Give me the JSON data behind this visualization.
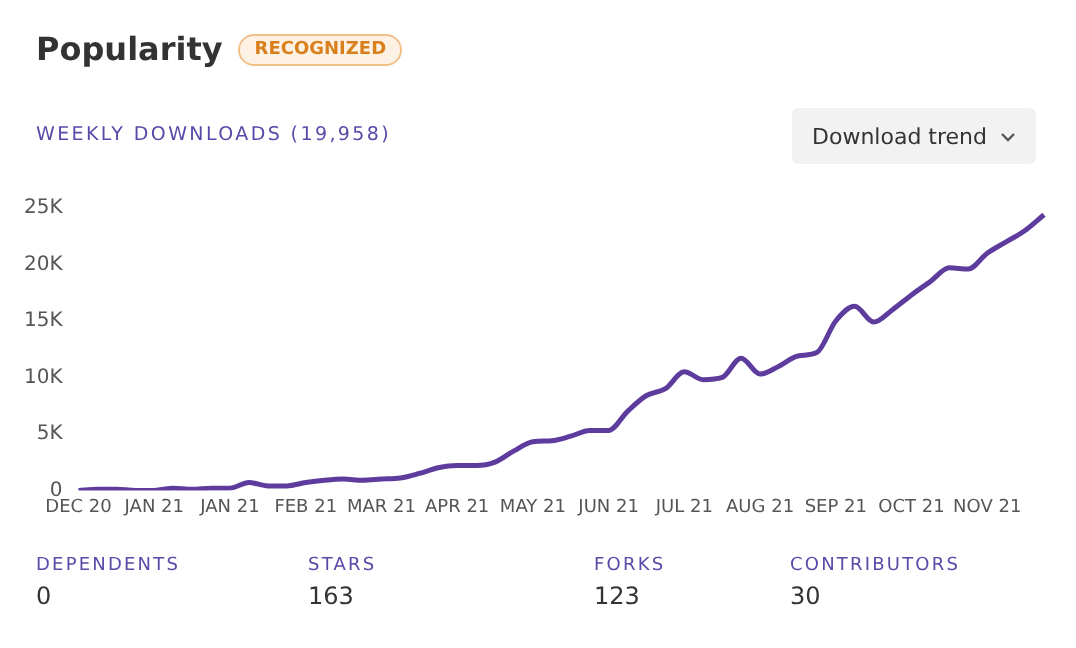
{
  "chart_data": {
    "type": "line",
    "title": "Popularity",
    "subtitle": "WEEKLY DOWNLOADS (19,958)",
    "annotations": [
      "RECOGNIZED",
      "Download trend",
      "DEPENDENTS",
      "0",
      "STARS",
      "163",
      "FORKS",
      "123",
      "CONTRIBUTORS",
      "30"
    ],
    "categories": [
      "DEC 20",
      null,
      null,
      null,
      "JAN 21",
      null,
      null,
      null,
      "JAN 21",
      null,
      null,
      null,
      "FEB 21",
      null,
      null,
      null,
      "MAR 21",
      null,
      null,
      null,
      "APR 21",
      null,
      null,
      null,
      "MAY 21",
      null,
      null,
      null,
      "JUN 21",
      null,
      null,
      null,
      "JUL 21",
      null,
      null,
      null,
      "AUG 21",
      null,
      null,
      null,
      "SEP 21",
      null,
      null,
      null,
      "OCT 21",
      null,
      null,
      null,
      "NOV 21",
      null,
      null,
      null
    ],
    "series": [
      {
        "color": "#5e3c9e",
        "values": [
          0,
          100,
          100,
          0,
          0,
          200,
          100,
          200,
          200,
          700,
          400,
          400,
          700,
          900,
          1000,
          900,
          1000,
          1100,
          1500,
          2000,
          2200,
          2200,
          2500,
          3500,
          4300,
          4400,
          4800,
          5300,
          5300,
          7000,
          8400,
          9000,
          10500,
          9800,
          10000,
          11700,
          10300,
          11000,
          11900,
          12200,
          15000,
          16300,
          14900,
          16000,
          17300,
          18500,
          19700,
          19600,
          21000,
          22000,
          23000,
          24400
        ]
      }
    ],
    "ylim": [
      0,
      25000
    ],
    "yticks": [
      0,
      {
        "value": 5000,
        "label": "5K"
      },
      {
        "value": 10000,
        "label": "10K"
      },
      {
        "value": 15000,
        "label": "15K"
      },
      {
        "value": 20000,
        "label": "20K"
      },
      {
        "value": 25000,
        "label": "25K"
      }
    ],
    "grid": false,
    "legend": false,
    "marker": "none",
    "line_style": "solid"
  }
}
